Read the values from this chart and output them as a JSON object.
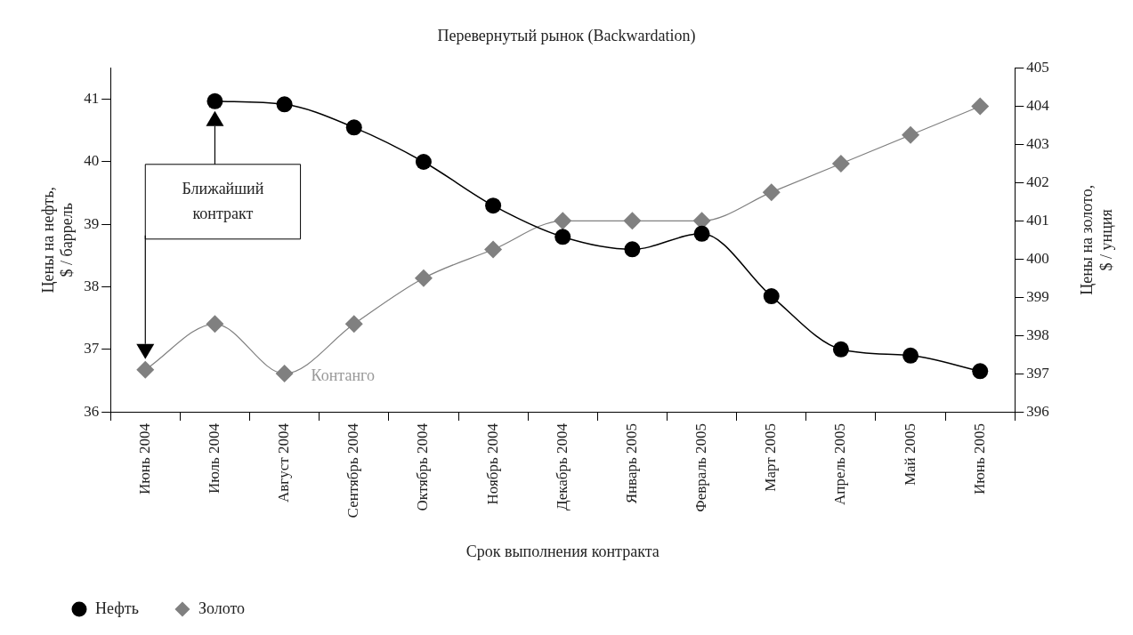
{
  "chart_data": {
    "type": "line",
    "title": "Перевернутый рынок (Backwardation)",
    "xlabel": "Срок выполнения контракта",
    "ylabel": "Цены на нефть, $ / баррель",
    "y2label": "Цены на золото, $ / унция",
    "categories": [
      "Июнь 2004",
      "Июль 2004",
      "Август 2004",
      "Сентябрь 2004",
      "Октябрь 2004",
      "Ноябрь 2004",
      "Декабрь 2004",
      "Январь 2005",
      "Февраль 2005",
      "Март 2005",
      "Апрель 2005",
      "Май 2005",
      "Июнь 2005"
    ],
    "series": [
      {
        "name": "Нефть",
        "color": "#000000",
        "marker": "circle",
        "values": [
          null,
          40.97,
          40.92,
          40.55,
          40.0,
          39.3,
          38.8,
          38.6,
          38.85,
          37.85,
          37.0,
          36.9,
          36.65
        ]
      },
      {
        "name": "Золото",
        "color": "#808080",
        "marker": "diamond",
        "axis": "y2",
        "values": [
          397.1,
          398.3,
          397.0,
          398.3,
          399.5,
          400.25,
          401.0,
          401.0,
          401.0,
          401.75,
          402.5,
          403.25,
          404.0
        ]
      }
    ],
    "ylim": [
      36,
      41.5
    ],
    "yticks": [
      36,
      37,
      38,
      39,
      40,
      41
    ],
    "y2lim": [
      396,
      405
    ],
    "y2ticks": [
      396,
      397,
      398,
      399,
      400,
      401,
      402,
      403,
      404,
      405
    ],
    "annotations": [
      "Ближайший контракт",
      "Контанго"
    ],
    "grid": false,
    "legend": "bottom left"
  }
}
